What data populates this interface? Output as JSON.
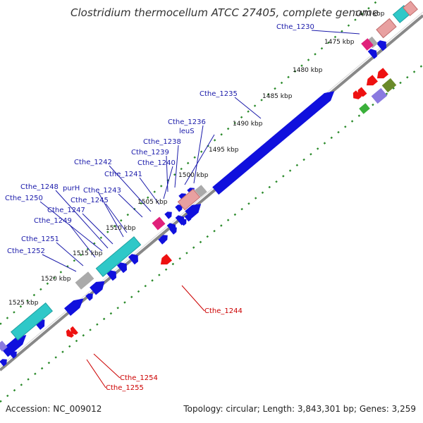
{
  "title": "Clostridium thermocellum ATCC 27405, complete genome",
  "footer": {
    "accession": "Accession: NC_009012",
    "stats": "Topology: circular; Length: 3,843,301 bp; Genes: 3,259"
  },
  "colors": {
    "cds_forward": "#1010dd",
    "cds_reverse": "#ee1111",
    "rrna": "#2fc8c8",
    "trna": "#e8a0a0",
    "misc": "#aaaaaa",
    "pink_feature": "#e0207a",
    "backbone": "#888888",
    "guide_dots": "#2a8a2a",
    "label_blue": "#1a1aaa",
    "label_red": "#cc0000"
  },
  "ticks": [
    "1470 kbp",
    "1475 kbp",
    "1480 kbp",
    "1485 kbp",
    "1490 kbp",
    "1495 kbp",
    "1500 kbp",
    "1505 kbp",
    "1510 kbp",
    "1515 kbp",
    "1520 kbp",
    "1525 kbp"
  ],
  "labels_forward": [
    "Cthe_1230",
    "Cthe_1235",
    "Cthe_1236",
    "leuS",
    "Cthe_1238",
    "Cthe_1239",
    "Cthe_1240",
    "Cthe_1241",
    "Cthe_1242",
    "Cthe_1243",
    "Cthe_1245",
    "purH",
    "Cthe_1247",
    "Cthe_1248",
    "Cthe_1250",
    "Cthe_1249",
    "Cthe_1251",
    "Cthe_1252"
  ],
  "labels_reverse": [
    "Cthe_1244",
    "Cthe_1254",
    "Cthe_1255"
  ]
}
